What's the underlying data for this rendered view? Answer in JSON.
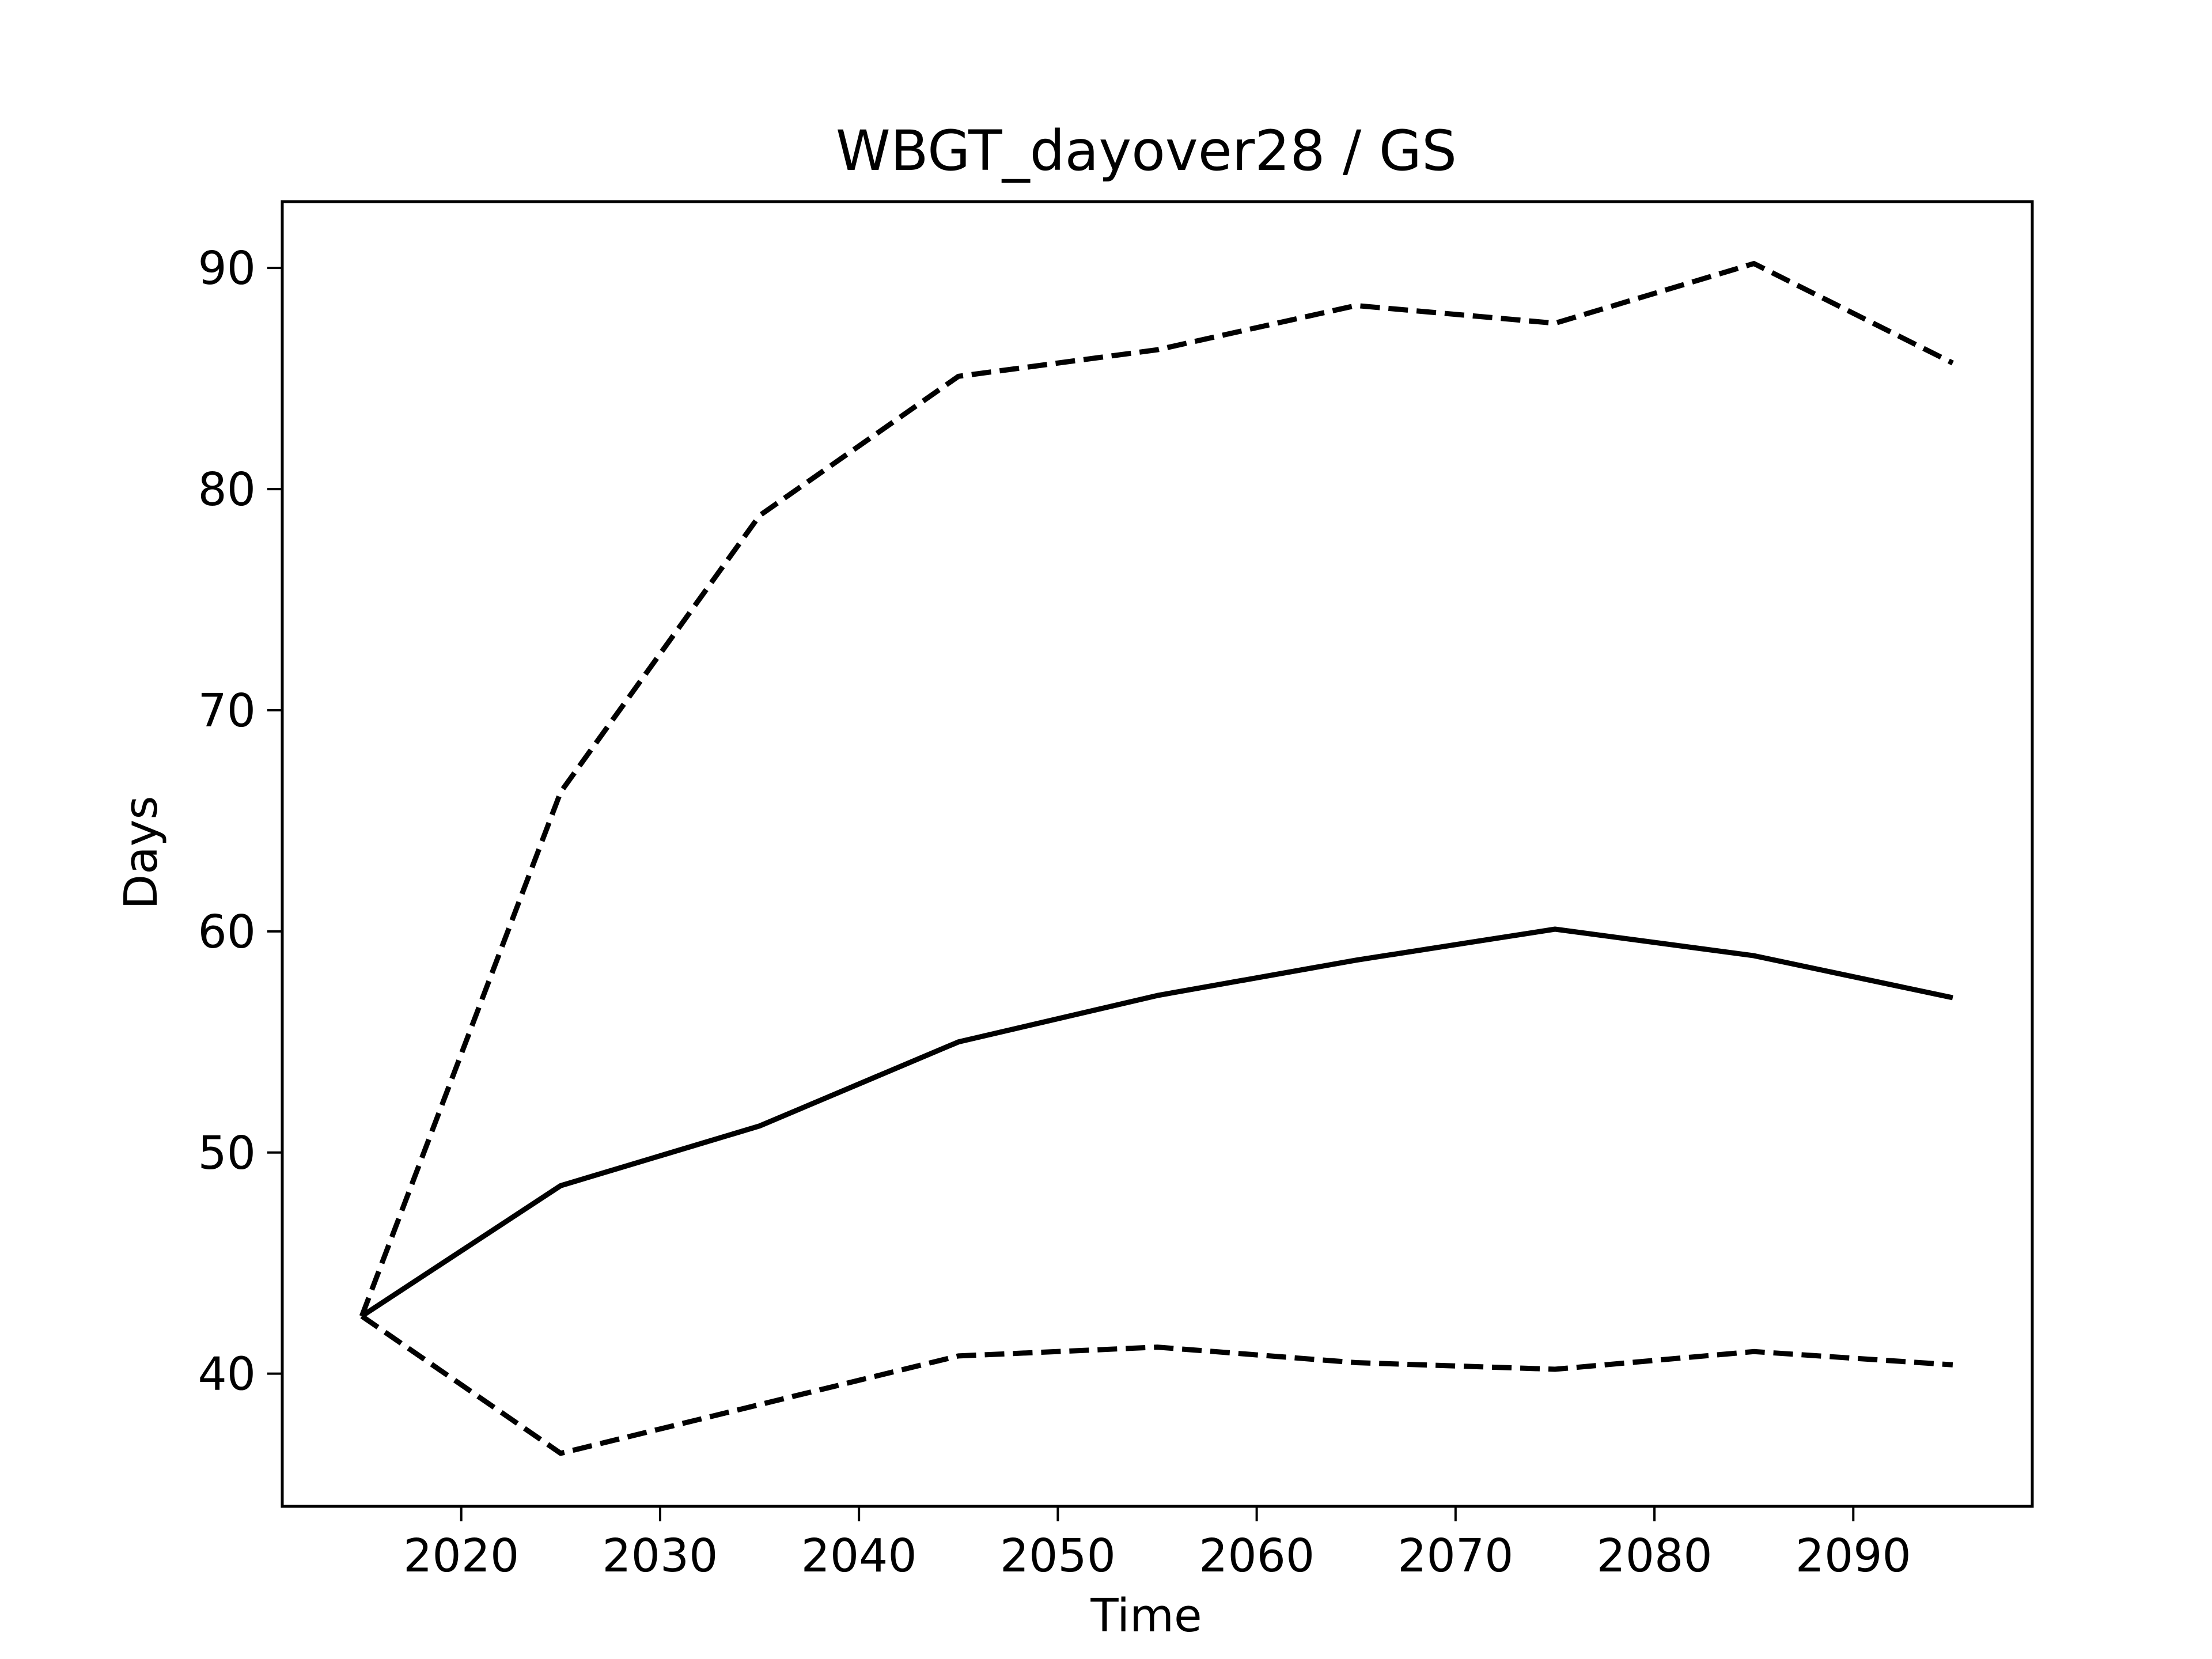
{
  "chart_data": {
    "type": "line",
    "title": "WBGT_dayover28 / GS",
    "xlabel": "Time",
    "ylabel": "Days",
    "xlim": [
      2011,
      2099
    ],
    "ylim": [
      34,
      93
    ],
    "xticks": [
      2020,
      2030,
      2040,
      2050,
      2060,
      2070,
      2080,
      2090
    ],
    "yticks": [
      40,
      50,
      60,
      70,
      80,
      90
    ],
    "x": [
      2015,
      2025,
      2035,
      2045,
      2055,
      2065,
      2075,
      2085,
      2095
    ],
    "grid": false,
    "legend": "none",
    "series": [
      {
        "style": "dashed",
        "color": "#000000",
        "values": [
          42.6,
          66.3,
          78.8,
          85.1,
          86.3,
          88.3,
          87.5,
          90.2,
          85.7
        ]
      },
      {
        "style": "solid",
        "color": "#000000",
        "values": [
          42.6,
          48.5,
          51.2,
          55.0,
          57.1,
          58.7,
          60.1,
          58.9,
          57.0
        ]
      },
      {
        "style": "dashed",
        "color": "#000000",
        "values": [
          42.6,
          36.4,
          38.6,
          40.8,
          41.2,
          40.5,
          40.2,
          41.0,
          40.4
        ]
      }
    ]
  }
}
